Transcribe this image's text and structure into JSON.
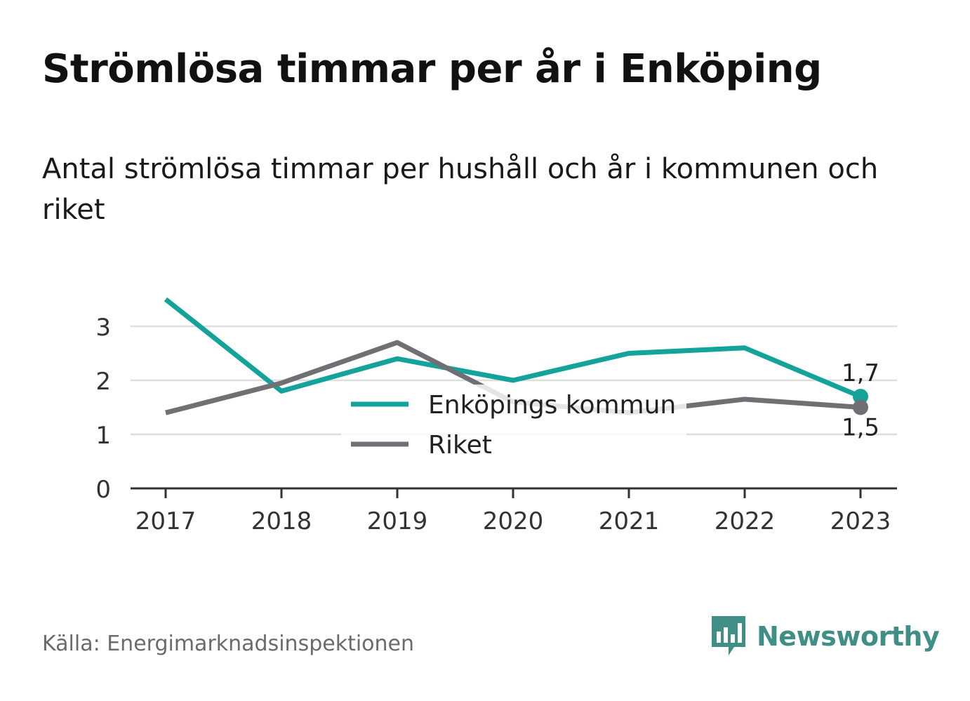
{
  "title": "Strömlösa timmar per år i Enköping",
  "subtitle": "Antal strömlösa timmar per hushåll och år i kommunen och riket",
  "source": "Källa: Energimarknadsinspektionen",
  "brand": {
    "name": "Newsworthy",
    "icon": "newsworthy-logo-icon",
    "color": "#3f8f86"
  },
  "chart_data": {
    "type": "line",
    "categories": [
      "2017",
      "2018",
      "2019",
      "2020",
      "2021",
      "2022",
      "2023"
    ],
    "series": [
      {
        "name": "Enköpings kommun",
        "color": "#13a39a",
        "values": [
          3.5,
          1.8,
          2.4,
          2.0,
          2.5,
          2.6,
          1.7
        ]
      },
      {
        "name": "Riket",
        "color": "#707074",
        "values": [
          1.4,
          1.95,
          2.7,
          1.6,
          1.4,
          1.65,
          1.5
        ]
      }
    ],
    "end_labels": [
      "1,7",
      "1,5"
    ],
    "yticks": [
      "0",
      "1",
      "2",
      "3"
    ],
    "ylim": [
      0,
      3
    ],
    "grid": true,
    "legend": "center"
  }
}
